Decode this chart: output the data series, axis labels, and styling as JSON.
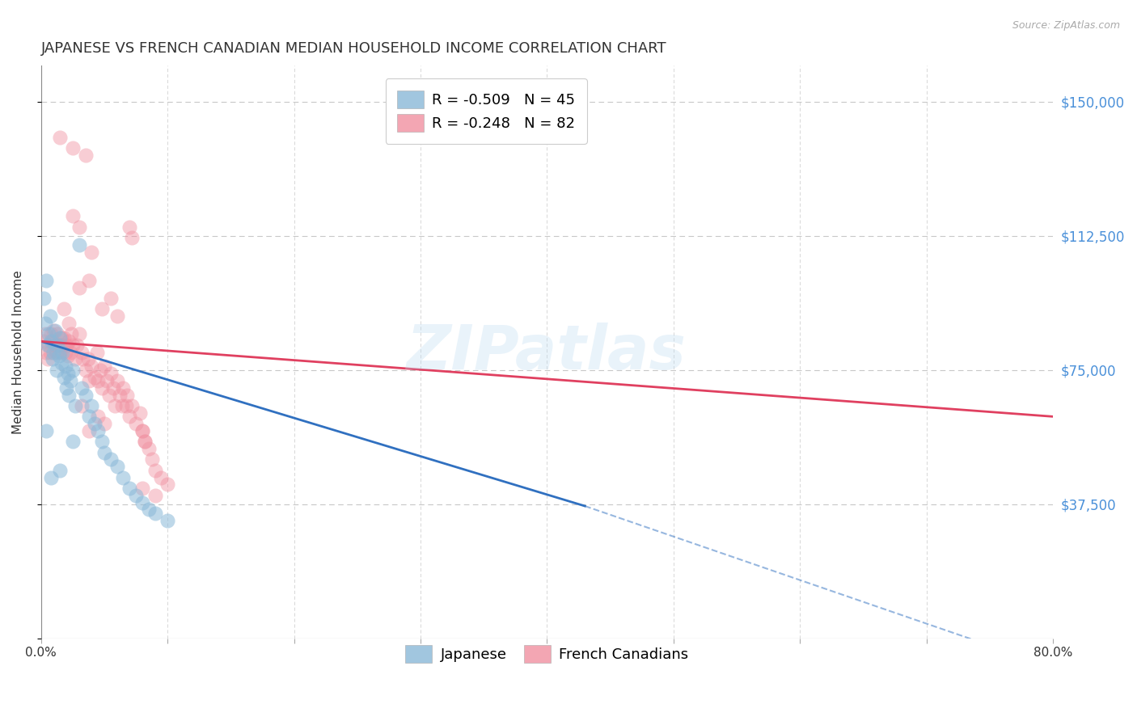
{
  "title": "JAPANESE VS FRENCH CANADIAN MEDIAN HOUSEHOLD INCOME CORRELATION CHART",
  "source": "Source: ZipAtlas.com",
  "ylabel": "Median Household Income",
  "yticks": [
    0,
    37500,
    75000,
    112500,
    150000
  ],
  "ytick_labels": [
    "",
    "$37,500",
    "$75,000",
    "$112,500",
    "$150,000"
  ],
  "ylim": [
    0,
    160000
  ],
  "xlim": [
    0.0,
    0.8
  ],
  "background_color": "#ffffff",
  "grid_color": "#c8c8c8",
  "watermark": "ZIPatlas",
  "japanese_color": "#8ab8d8",
  "french_color": "#f090a0",
  "japanese_line_color": "#3070c0",
  "french_line_color": "#e04060",
  "japanese_scatter": [
    [
      0.002,
      95000
    ],
    [
      0.003,
      88000
    ],
    [
      0.004,
      100000
    ],
    [
      0.005,
      82000
    ],
    [
      0.006,
      85000
    ],
    [
      0.007,
      90000
    ],
    [
      0.008,
      83000
    ],
    [
      0.009,
      78000
    ],
    [
      0.01,
      80000
    ],
    [
      0.011,
      86000
    ],
    [
      0.012,
      75000
    ],
    [
      0.013,
      82000
    ],
    [
      0.014,
      79000
    ],
    [
      0.015,
      84000
    ],
    [
      0.016,
      77000
    ],
    [
      0.017,
      80000
    ],
    [
      0.018,
      73000
    ],
    [
      0.019,
      76000
    ],
    [
      0.02,
      70000
    ],
    [
      0.021,
      74000
    ],
    [
      0.022,
      68000
    ],
    [
      0.023,
      72000
    ],
    [
      0.025,
      75000
    ],
    [
      0.027,
      65000
    ],
    [
      0.03,
      110000
    ],
    [
      0.032,
      70000
    ],
    [
      0.035,
      68000
    ],
    [
      0.038,
      62000
    ],
    [
      0.04,
      65000
    ],
    [
      0.042,
      60000
    ],
    [
      0.045,
      58000
    ],
    [
      0.048,
      55000
    ],
    [
      0.05,
      52000
    ],
    [
      0.055,
      50000
    ],
    [
      0.06,
      48000
    ],
    [
      0.065,
      45000
    ],
    [
      0.07,
      42000
    ],
    [
      0.075,
      40000
    ],
    [
      0.08,
      38000
    ],
    [
      0.085,
      36000
    ],
    [
      0.09,
      35000
    ],
    [
      0.1,
      33000
    ],
    [
      0.004,
      58000
    ],
    [
      0.015,
      47000
    ],
    [
      0.025,
      55000
    ],
    [
      0.008,
      45000
    ]
  ],
  "french_scatter": [
    [
      0.002,
      83000
    ],
    [
      0.003,
      85000
    ],
    [
      0.004,
      80000
    ],
    [
      0.005,
      78000
    ],
    [
      0.006,
      82000
    ],
    [
      0.007,
      80000
    ],
    [
      0.008,
      85000
    ],
    [
      0.009,
      83000
    ],
    [
      0.01,
      86000
    ],
    [
      0.011,
      82000
    ],
    [
      0.012,
      80000
    ],
    [
      0.013,
      85000
    ],
    [
      0.014,
      82000
    ],
    [
      0.015,
      80000
    ],
    [
      0.016,
      84000
    ],
    [
      0.017,
      82000
    ],
    [
      0.018,
      84000
    ],
    [
      0.019,
      80000
    ],
    [
      0.02,
      82000
    ],
    [
      0.021,
      79000
    ],
    [
      0.022,
      83000
    ],
    [
      0.023,
      80000
    ],
    [
      0.024,
      85000
    ],
    [
      0.025,
      82000
    ],
    [
      0.027,
      78000
    ],
    [
      0.028,
      82000
    ],
    [
      0.03,
      85000
    ],
    [
      0.032,
      80000
    ],
    [
      0.033,
      78000
    ],
    [
      0.035,
      75000
    ],
    [
      0.037,
      78000
    ],
    [
      0.038,
      72000
    ],
    [
      0.04,
      76000
    ],
    [
      0.042,
      73000
    ],
    [
      0.044,
      80000
    ],
    [
      0.045,
      72000
    ],
    [
      0.047,
      75000
    ],
    [
      0.048,
      70000
    ],
    [
      0.05,
      76000
    ],
    [
      0.052,
      72000
    ],
    [
      0.054,
      68000
    ],
    [
      0.055,
      74000
    ],
    [
      0.057,
      70000
    ],
    [
      0.058,
      65000
    ],
    [
      0.06,
      72000
    ],
    [
      0.062,
      68000
    ],
    [
      0.064,
      65000
    ],
    [
      0.065,
      70000
    ],
    [
      0.067,
      65000
    ],
    [
      0.068,
      68000
    ],
    [
      0.07,
      62000
    ],
    [
      0.072,
      65000
    ],
    [
      0.075,
      60000
    ],
    [
      0.078,
      63000
    ],
    [
      0.08,
      58000
    ],
    [
      0.082,
      55000
    ],
    [
      0.085,
      53000
    ],
    [
      0.088,
      50000
    ],
    [
      0.09,
      47000
    ],
    [
      0.095,
      45000
    ],
    [
      0.1,
      43000
    ],
    [
      0.015,
      140000
    ],
    [
      0.025,
      137000
    ],
    [
      0.035,
      135000
    ],
    [
      0.03,
      115000
    ],
    [
      0.04,
      108000
    ],
    [
      0.03,
      98000
    ],
    [
      0.025,
      118000
    ],
    [
      0.038,
      100000
    ],
    [
      0.048,
      92000
    ],
    [
      0.055,
      95000
    ],
    [
      0.06,
      90000
    ],
    [
      0.07,
      115000
    ],
    [
      0.072,
      112000
    ],
    [
      0.08,
      58000
    ],
    [
      0.082,
      55000
    ],
    [
      0.018,
      92000
    ],
    [
      0.022,
      88000
    ],
    [
      0.045,
      62000
    ],
    [
      0.05,
      60000
    ],
    [
      0.032,
      65000
    ],
    [
      0.038,
      58000
    ],
    [
      0.09,
      40000
    ],
    [
      0.08,
      42000
    ]
  ],
  "title_fontsize": 13,
  "axis_label_fontsize": 11,
  "tick_fontsize": 11,
  "legend_fontsize": 13
}
